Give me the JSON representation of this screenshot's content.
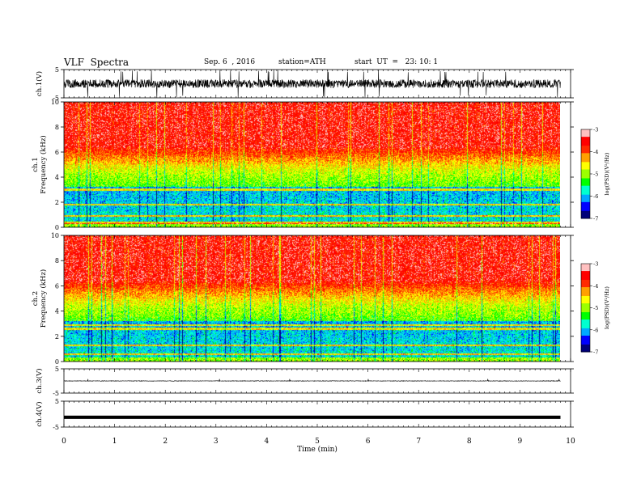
{
  "header": {
    "title": "VLF  Spectra",
    "date": "Sep. 6  , 2016",
    "station": "station=ATH",
    "start": "start  UT  =   23: 10: 1"
  },
  "chart_data": {
    "type": "heatmap",
    "xlabel": "Time  (min)",
    "xlim": [
      0,
      10
    ],
    "xticks": [
      "0",
      "1",
      "2",
      "3",
      "4",
      "5",
      "6",
      "7",
      "8",
      "9",
      "10"
    ],
    "data_end_min": 9.8,
    "panels": [
      {
        "id": "ch1_wave",
        "ylabel": "ch.1(V)",
        "ylim": [
          -5,
          5
        ],
        "yticks": [
          "5",
          "-5"
        ],
        "baseline": 0,
        "amplitude": 1.5
      },
      {
        "id": "ch1_spec",
        "ylabel": [
          "ch.1",
          "Frequency  (kHz)"
        ],
        "ylim": [
          0,
          10
        ],
        "yticks": [
          "0",
          "2",
          "4",
          "6",
          "8",
          "10"
        ],
        "lines_khz": [
          0.35,
          0.9,
          1.8,
          3.0
        ],
        "seed": 11
      },
      {
        "id": "ch2_spec",
        "ylabel": [
          "ch.2",
          "Frequency  (kHz)"
        ],
        "ylim": [
          0,
          10
        ],
        "yticks": [
          "0",
          "2",
          "4",
          "6",
          "8",
          "10"
        ],
        "lines_khz": [
          0.6,
          1.3,
          2.6,
          2.9
        ],
        "seed": 23
      },
      {
        "id": "ch3_wave",
        "ylabel": "ch.3(V)",
        "ylim": [
          -5,
          5
        ],
        "yticks": [
          "5",
          "-5"
        ],
        "baseline": 0,
        "amplitude": 0.1
      },
      {
        "id": "ch4_wave",
        "ylabel": "ch.4(V)",
        "ylim": [
          -5,
          5
        ],
        "yticks": [
          "5",
          "-5"
        ],
        "baseline": -1.2,
        "amplitude": 0.0
      }
    ],
    "colorbar": {
      "label": "log(PSD)(V²/Hz)",
      "range": [
        -7,
        -3
      ],
      "ticks": [
        "-3",
        "-4",
        "-5",
        "-6",
        "-7"
      ],
      "colormap": [
        "#00007a",
        "#0000ff",
        "#00a8ff",
        "#00ffd0",
        "#00ff00",
        "#9cff00",
        "#ffff00",
        "#ffa000",
        "#ff2a00",
        "#ff0000",
        "#ffc0c0",
        "#ffffff"
      ]
    }
  }
}
